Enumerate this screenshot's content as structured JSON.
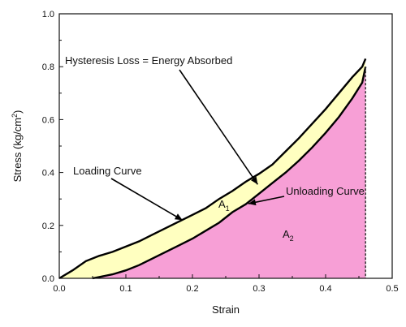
{
  "chart_data": {
    "type": "area",
    "xlabel": "Strain",
    "ylabel_main": "Stress (kg/cm",
    "ylabel_sup": "2",
    "ylabel_close": ")",
    "xlim": [
      0.0,
      0.5
    ],
    "ylim": [
      0.0,
      1.0
    ],
    "x_ticks": [
      "0.0",
      "0.1",
      "0.2",
      "0.3",
      "0.4",
      "0.5"
    ],
    "y_ticks": [
      "0.0",
      "0.2",
      "0.4",
      "0.6",
      "0.8",
      "1.0"
    ],
    "grid": false,
    "series": [
      {
        "name": "Loading Curve",
        "x": [
          0.0,
          0.02,
          0.04,
          0.06,
          0.08,
          0.1,
          0.12,
          0.14,
          0.16,
          0.18,
          0.2,
          0.22,
          0.24,
          0.26,
          0.28,
          0.3,
          0.32,
          0.34,
          0.36,
          0.38,
          0.4,
          0.42,
          0.44,
          0.455,
          0.46
        ],
        "y": [
          0.0,
          0.03,
          0.065,
          0.085,
          0.1,
          0.12,
          0.14,
          0.165,
          0.19,
          0.215,
          0.24,
          0.265,
          0.3,
          0.33,
          0.365,
          0.395,
          0.43,
          0.48,
          0.53,
          0.585,
          0.64,
          0.7,
          0.76,
          0.8,
          0.83
        ]
      },
      {
        "name": "Unloading Curve",
        "x": [
          0.05,
          0.06,
          0.08,
          0.1,
          0.12,
          0.14,
          0.16,
          0.18,
          0.2,
          0.22,
          0.24,
          0.26,
          0.28,
          0.3,
          0.32,
          0.34,
          0.36,
          0.38,
          0.4,
          0.42,
          0.44,
          0.455,
          0.46
        ],
        "y": [
          0.0,
          0.005,
          0.015,
          0.03,
          0.05,
          0.075,
          0.1,
          0.125,
          0.15,
          0.18,
          0.21,
          0.25,
          0.28,
          0.32,
          0.36,
          0.4,
          0.445,
          0.495,
          0.55,
          0.61,
          0.68,
          0.74,
          0.8
        ]
      }
    ],
    "fill_between_color": "#ffffc0",
    "fill_under_unloading_color": "#f79fd6",
    "annotations": {
      "hysteresis": "Hysteresis Loss = Energy Absorbed",
      "loading": "Loading Curve",
      "unloading": "Unloading Curve",
      "a1": "A",
      "a1_sub": "1",
      "a2": "A",
      "a2_sub": "2"
    }
  }
}
